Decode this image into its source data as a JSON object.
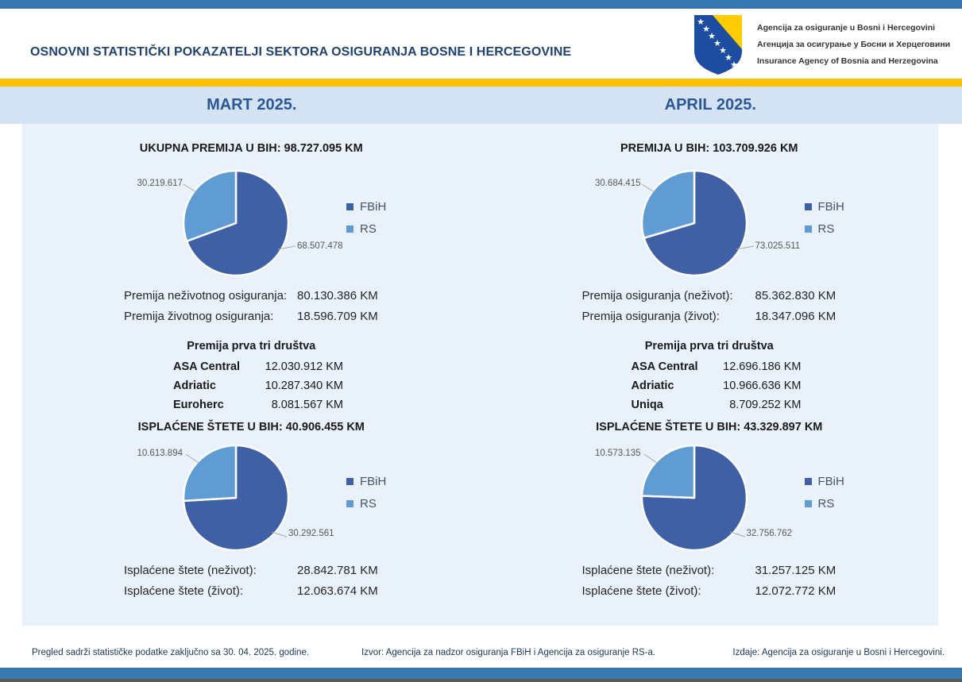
{
  "header": {
    "title": "OSNOVNI STATISTIČKI POKAZATELJI SEKTORA OSIGURANJA BOSNE I HERCEGOVINE",
    "agency_lines": [
      "Agencija za osiguranje u Bosni i Hercegovini",
      "Агенција за осигурање у Босни и Херцеговини",
      "Insurance Agency of Bosnia and Herzegovina"
    ],
    "logo": "bih-coat-of-arms-shield"
  },
  "legend": {
    "fbih": "FBiH",
    "rs": "RS"
  },
  "colors": {
    "fbih": "#3F60A5",
    "rs": "#5E9CD3",
    "accent_blue": "#3778B3",
    "gold": "#FFC000",
    "band": "#D4E3F4",
    "panel": "#E9F1FB",
    "navy": "#1F4273"
  },
  "columns": [
    {
      "month": "MART 2025.",
      "premium": {
        "title": "UKUPNA PREMIJA U BIH: 98.727.095 KM",
        "pie": {
          "fbih_value": 68507478,
          "rs_value": 30219617,
          "fbih_label": "68.507.478",
          "rs_label": "30.219.617"
        },
        "rows": [
          {
            "label": "Premija neživotnog osiguranja:",
            "value": "80.130.386 KM"
          },
          {
            "label": "Premija životnog osiguranja:",
            "value": "18.596.709 KM"
          }
        ]
      },
      "top3": {
        "title": "Premija prva tri društva",
        "rows": [
          {
            "name": "ASA Central",
            "value": "12.030.912 KM"
          },
          {
            "name": "Adriatic",
            "value": "10.287.340 KM"
          },
          {
            "name": "Euroherc",
            "value": "8.081.567 KM"
          }
        ]
      },
      "claims": {
        "title": "ISPLAĆENE ŠTETE U BIH: 40.906.455 KM",
        "pie": {
          "fbih_value": 30292561,
          "rs_value": 10613894,
          "fbih_label": "30.292.561",
          "rs_label": "10.613.894"
        },
        "rows": [
          {
            "label": "Isplaćene štete (neživot):",
            "value": "28.842.781 KM"
          },
          {
            "label": "Isplaćene štete (život):",
            "value": "12.063.674 KM"
          }
        ]
      }
    },
    {
      "month": "APRIL 2025.",
      "premium": {
        "title": "PREMIJA U BIH: 103.709.926 KM",
        "pie": {
          "fbih_value": 73025511,
          "rs_value": 30684415,
          "fbih_label": "73.025.511",
          "rs_label": "30.684.415"
        },
        "rows": [
          {
            "label": "Premija osiguranja (neživot):",
            "value": "85.362.830 KM"
          },
          {
            "label": "Premija osiguranja (život):",
            "value": "18.347.096 KM"
          }
        ]
      },
      "top3": {
        "title": "Premija prva tri društva",
        "rows": [
          {
            "name": "ASA Central",
            "value": "12.696.186 KM"
          },
          {
            "name": "Adriatic",
            "value": "10.966.636 KM"
          },
          {
            "name": "Uniqa",
            "value": "8.709.252 KM"
          }
        ]
      },
      "claims": {
        "title": "ISPLAĆENE ŠTETE U BIH: 43.329.897 KM",
        "pie": {
          "fbih_value": 32756762,
          "rs_value": 10573135,
          "fbih_label": "32.756.762",
          "rs_label": "10.573.135"
        },
        "rows": [
          {
            "label": "Isplaćene štete (neživot):",
            "value": "31.257.125 KM"
          },
          {
            "label": "Isplaćene štete (život):",
            "value": "12.072.772 KM"
          }
        ]
      }
    }
  ],
  "footer": {
    "note": "Pregled sadrži statističke podatke zaključno sa 30. 04. 2025. godine.",
    "source": "Izvor: Agencija za nadzor osiguranja FBiH i Agencija za osiguranje RS-a.",
    "publisher": "Izdaje: Agencija za osiguranje u Bosni i Hercegovini."
  },
  "chart_data": [
    {
      "type": "pie",
      "title": "UKUPNA PREMIJA U BIH: 98.727.095 KM",
      "labels": [
        "FBiH",
        "RS"
      ],
      "values": [
        68507478,
        30219617
      ],
      "data_labels": [
        "68.507.478",
        "30.219.617"
      ],
      "colors": [
        "#3F60A5",
        "#5E9CD3"
      ],
      "legend_position": "right"
    },
    {
      "type": "pie",
      "title": "ISPLAĆENE ŠTETE U BIH: 40.906.455 KM",
      "labels": [
        "FBiH",
        "RS"
      ],
      "values": [
        30292561,
        10613894
      ],
      "data_labels": [
        "30.292.561",
        "10.613.894"
      ],
      "colors": [
        "#3F60A5",
        "#5E9CD3"
      ],
      "legend_position": "right"
    },
    {
      "type": "pie",
      "title": "PREMIJA U BIH: 103.709.926 KM",
      "labels": [
        "FBiH",
        "RS"
      ],
      "values": [
        73025511,
        30684415
      ],
      "data_labels": [
        "73.025.511",
        "30.684.415"
      ],
      "colors": [
        "#3F60A5",
        "#5E9CD3"
      ],
      "legend_position": "right"
    },
    {
      "type": "pie",
      "title": "ISPLAĆENE ŠTETE U BIH: 43.329.897 KM",
      "labels": [
        "FBiH",
        "RS"
      ],
      "values": [
        32756762,
        10573135
      ],
      "data_labels": [
        "32.756.762",
        "10.573.135"
      ],
      "colors": [
        "#3F60A5",
        "#5E9CD3"
      ],
      "legend_position": "right"
    }
  ]
}
